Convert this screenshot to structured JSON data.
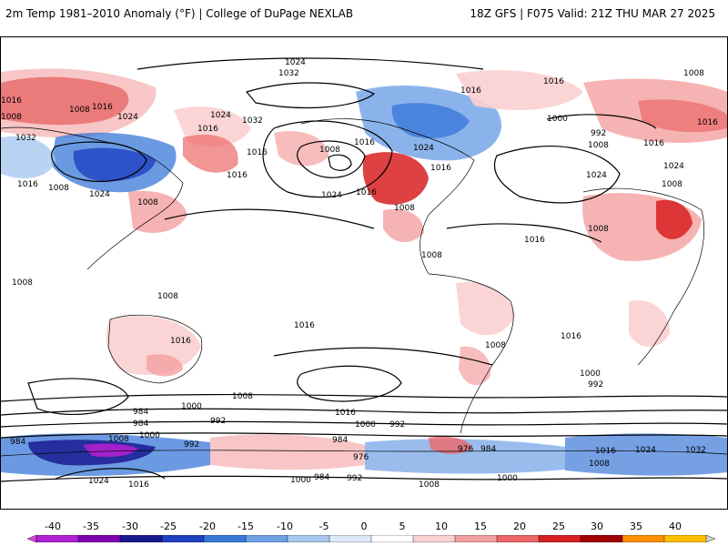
{
  "header": {
    "left_title": "2m Temp 1981–2010 Anomaly (°F) | College of DuPage NEXLAB",
    "right_title": "18Z GFS | F075 Valid: 21Z THU MAR 27 2025"
  },
  "map": {
    "isobar_labels": [
      "1024",
      "1032",
      "1008",
      "1016",
      "1016",
      "1008",
      "1024",
      "1032",
      "1016",
      "1024",
      "1032",
      "1008",
      "1016",
      "1024",
      "1016",
      "1008",
      "1016",
      "1024",
      "1016",
      "1016",
      "1008",
      "1024",
      "1016",
      "1008",
      "1016",
      "1000",
      "992",
      "1008",
      "1016",
      "1024",
      "1008",
      "1016",
      "1008",
      "1016",
      "1008",
      "1008",
      "1016",
      "1008",
      "1024",
      "1016",
      "1016",
      "1008",
      "1016",
      "1008",
      "1000",
      "992",
      "984",
      "1000",
      "992",
      "1008",
      "1016",
      "1000",
      "992",
      "984",
      "976",
      "984",
      "992",
      "1016",
      "1024",
      "1032",
      "1008",
      "984",
      "1008",
      "1000",
      "984",
      "992",
      "1000",
      "1024",
      "1016",
      "1000",
      "1008",
      "976",
      "984"
    ]
  },
  "colorbar": {
    "tick_labels": [
      "-40",
      "-35",
      "-30",
      "-25",
      "-20",
      "-15",
      "-10",
      "-5",
      "0",
      "5",
      "10",
      "15",
      "20",
      "25",
      "30",
      "35",
      "40"
    ],
    "colors": [
      "#e040e0",
      "#b020d0",
      "#8000b0",
      "#1a1a90",
      "#1f40c0",
      "#3a78d8",
      "#6ea0e6",
      "#a8c8f0",
      "#dceaf8",
      "#ffffff",
      "#fbd0d0",
      "#f4a0a0",
      "#ec6868",
      "#d82020",
      "#a00000",
      "#ff9000",
      "#ffc000",
      "#d0d0d0"
    ],
    "unit": "°F"
  }
}
